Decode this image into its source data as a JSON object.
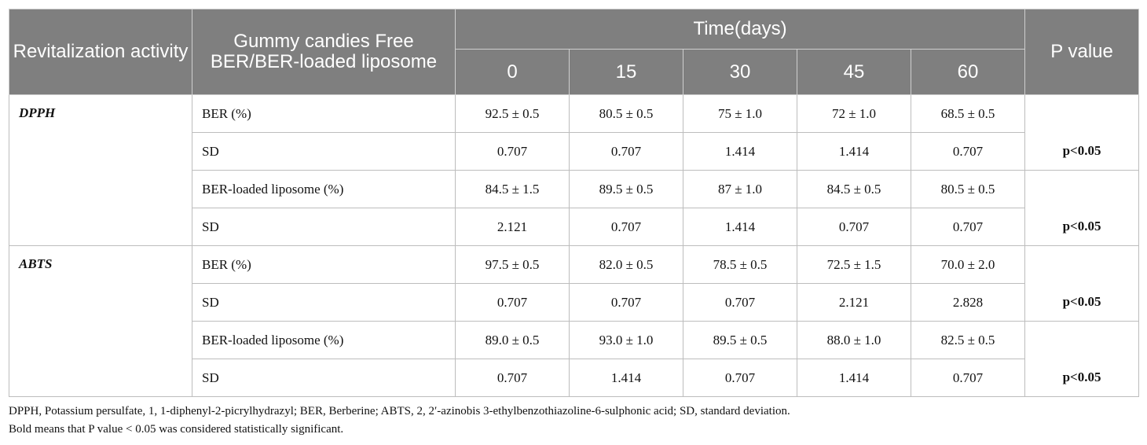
{
  "header": {
    "activity": "Revitalization activity",
    "gummy": "Gummy candies Free BER/BER-loaded liposome",
    "time": "Time(days)",
    "days": [
      "0",
      "15",
      "30",
      "45",
      "60"
    ],
    "pvalue": "P value"
  },
  "groups": [
    {
      "activity": "DPPH",
      "rows": [
        {
          "label": "BER (%)",
          "values": [
            "92.5 ± 0.5",
            "80.5 ± 0.5",
            "75 ± 1.0",
            "72 ± 1.0",
            "68.5 ± 0.5"
          ]
        },
        {
          "label": "SD",
          "values": [
            "0.707",
            "0.707",
            "1.414",
            "1.414",
            "0.707"
          ]
        },
        {
          "label": "BER-loaded liposome (%)",
          "values": [
            "84.5 ± 1.5",
            "89.5 ± 0.5",
            "87 ± 1.0",
            "84.5 ± 0.5",
            "80.5 ± 0.5"
          ]
        },
        {
          "label": "SD",
          "values": [
            "2.121",
            "0.707",
            "1.414",
            "0.707",
            "0.707"
          ]
        }
      ],
      "p": [
        "p<0.05",
        "p<0.05"
      ]
    },
    {
      "activity": "ABTS",
      "rows": [
        {
          "label": "BER (%)",
          "values": [
            "97.5 ± 0.5",
            "82.0 ± 0.5",
            "78.5 ± 0.5",
            "72.5 ± 1.5",
            "70.0 ± 2.0"
          ]
        },
        {
          "label": "SD",
          "values": [
            "0.707",
            "0.707",
            "0.707",
            "2.121",
            "2.828"
          ]
        },
        {
          "label": "BER-loaded liposome (%)",
          "values": [
            "89.0 ± 0.5",
            "93.0 ± 1.0",
            "89.5 ± 0.5",
            "88.0 ± 1.0",
            "82.5 ± 0.5"
          ]
        },
        {
          "label": "SD",
          "values": [
            "0.707",
            "1.414",
            "0.707",
            "1.414",
            "0.707"
          ]
        }
      ],
      "p": [
        "p<0.05",
        "p<0.05"
      ]
    }
  ],
  "footnotes": [
    "DPPH, Potassium persulfate, 1, 1-diphenyl-2-picrylhydrazyl; BER, Berberine; ABTS, 2, 2′-azinobis 3-ethylbenzothiazoline-6-sulphonic acid; SD, standard deviation.",
    "Bold means that P value < 0.05 was considered statistically significant."
  ]
}
